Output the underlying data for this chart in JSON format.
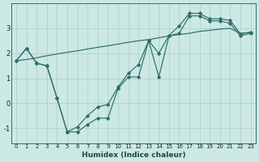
{
  "xlabel": "Humidex (Indice chaleur)",
  "background_color": "#cce8e4",
  "grid_color": "#aacccc",
  "line_color": "#2d6e64",
  "xlim": [
    -0.5,
    23.5
  ],
  "ylim": [
    -1.6,
    4.0
  ],
  "xticks": [
    0,
    1,
    2,
    3,
    4,
    5,
    6,
    7,
    8,
    9,
    10,
    11,
    12,
    13,
    14,
    15,
    16,
    17,
    18,
    19,
    20,
    21,
    22,
    23
  ],
  "yticks": [
    -1,
    0,
    1,
    2,
    3
  ],
  "line_zigzag_x": [
    0,
    1,
    2,
    3,
    4,
    5,
    6,
    7,
    8,
    9,
    10,
    11,
    12,
    13,
    14,
    15,
    16,
    17,
    18,
    19,
    20,
    21,
    22,
    23
  ],
  "line_zigzag_y": [
    1.7,
    2.2,
    1.6,
    1.5,
    0.2,
    -1.15,
    -1.15,
    -0.85,
    -0.6,
    -0.6,
    0.6,
    1.05,
    1.05,
    2.5,
    1.05,
    2.7,
    2.8,
    3.5,
    3.5,
    3.3,
    3.3,
    3.2,
    2.7,
    2.8
  ],
  "line_diag_x": [
    0,
    1,
    2,
    3,
    4,
    5,
    6,
    7,
    8,
    9,
    10,
    11,
    12,
    13,
    14,
    15,
    16,
    17,
    18,
    19,
    20,
    21,
    22,
    23
  ],
  "line_diag_y": [
    1.7,
    1.75,
    1.82,
    1.9,
    1.97,
    2.04,
    2.1,
    2.17,
    2.24,
    2.3,
    2.37,
    2.44,
    2.5,
    2.55,
    2.62,
    2.7,
    2.75,
    2.8,
    2.88,
    2.92,
    2.97,
    3.0,
    2.8,
    2.83
  ],
  "line_upper_x": [
    0,
    1,
    2,
    3,
    4,
    5,
    6,
    7,
    8,
    9,
    10,
    11,
    12,
    13,
    14,
    15,
    16,
    17,
    18,
    19,
    20,
    21,
    22,
    23
  ],
  "line_upper_y": [
    1.7,
    2.2,
    1.6,
    1.5,
    0.2,
    -1.15,
    -0.95,
    -0.5,
    -0.15,
    -0.05,
    0.65,
    1.2,
    1.55,
    2.5,
    2.0,
    2.72,
    3.1,
    3.6,
    3.6,
    3.38,
    3.38,
    3.32,
    2.78,
    2.85
  ]
}
